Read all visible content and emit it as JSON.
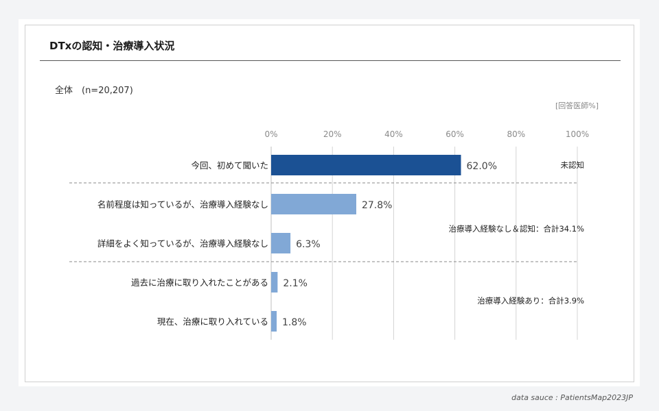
{
  "title": "DTxの認知・治療導入状況",
  "subtitle": "全体　(n=20,207)",
  "unit_note": "[回答医師%]",
  "source": "data sauce : PatientsMap2023JP",
  "colors": {
    "primary_bar": "#1b5194",
    "secondary_bar": "#81a8d6",
    "grid": "#d4d4d4",
    "divider": "#8a8a8a"
  },
  "chart_data": {
    "type": "bar",
    "orientation": "horizontal",
    "categories": [
      "今回、初めて聞いた",
      "名前程度は知っているが、治療導入経験なし",
      "詳細をよく知っているが、治療導入経験なし",
      "過去に治療に取り入れたことがある",
      "現在、治療に取り入れている"
    ],
    "values": [
      62.0,
      27.8,
      6.3,
      2.1,
      1.8
    ],
    "value_labels": [
      "62.0%",
      "27.8%",
      "6.3%",
      "2.1%",
      "1.8%"
    ],
    "xlim": [
      0,
      100
    ],
    "x_ticks": [
      "0%",
      "20%",
      "40%",
      "60%",
      "80%",
      "100%"
    ],
    "grid": true,
    "groups": [
      {
        "label": "未認知",
        "categories": [
          0
        ]
      },
      {
        "label": "治療導入経験なし＆認知：合計34.1%",
        "categories": [
          1,
          2
        ]
      },
      {
        "label": "治療導入経験あり：合計3.9%",
        "categories": [
          3,
          4
        ]
      }
    ]
  }
}
